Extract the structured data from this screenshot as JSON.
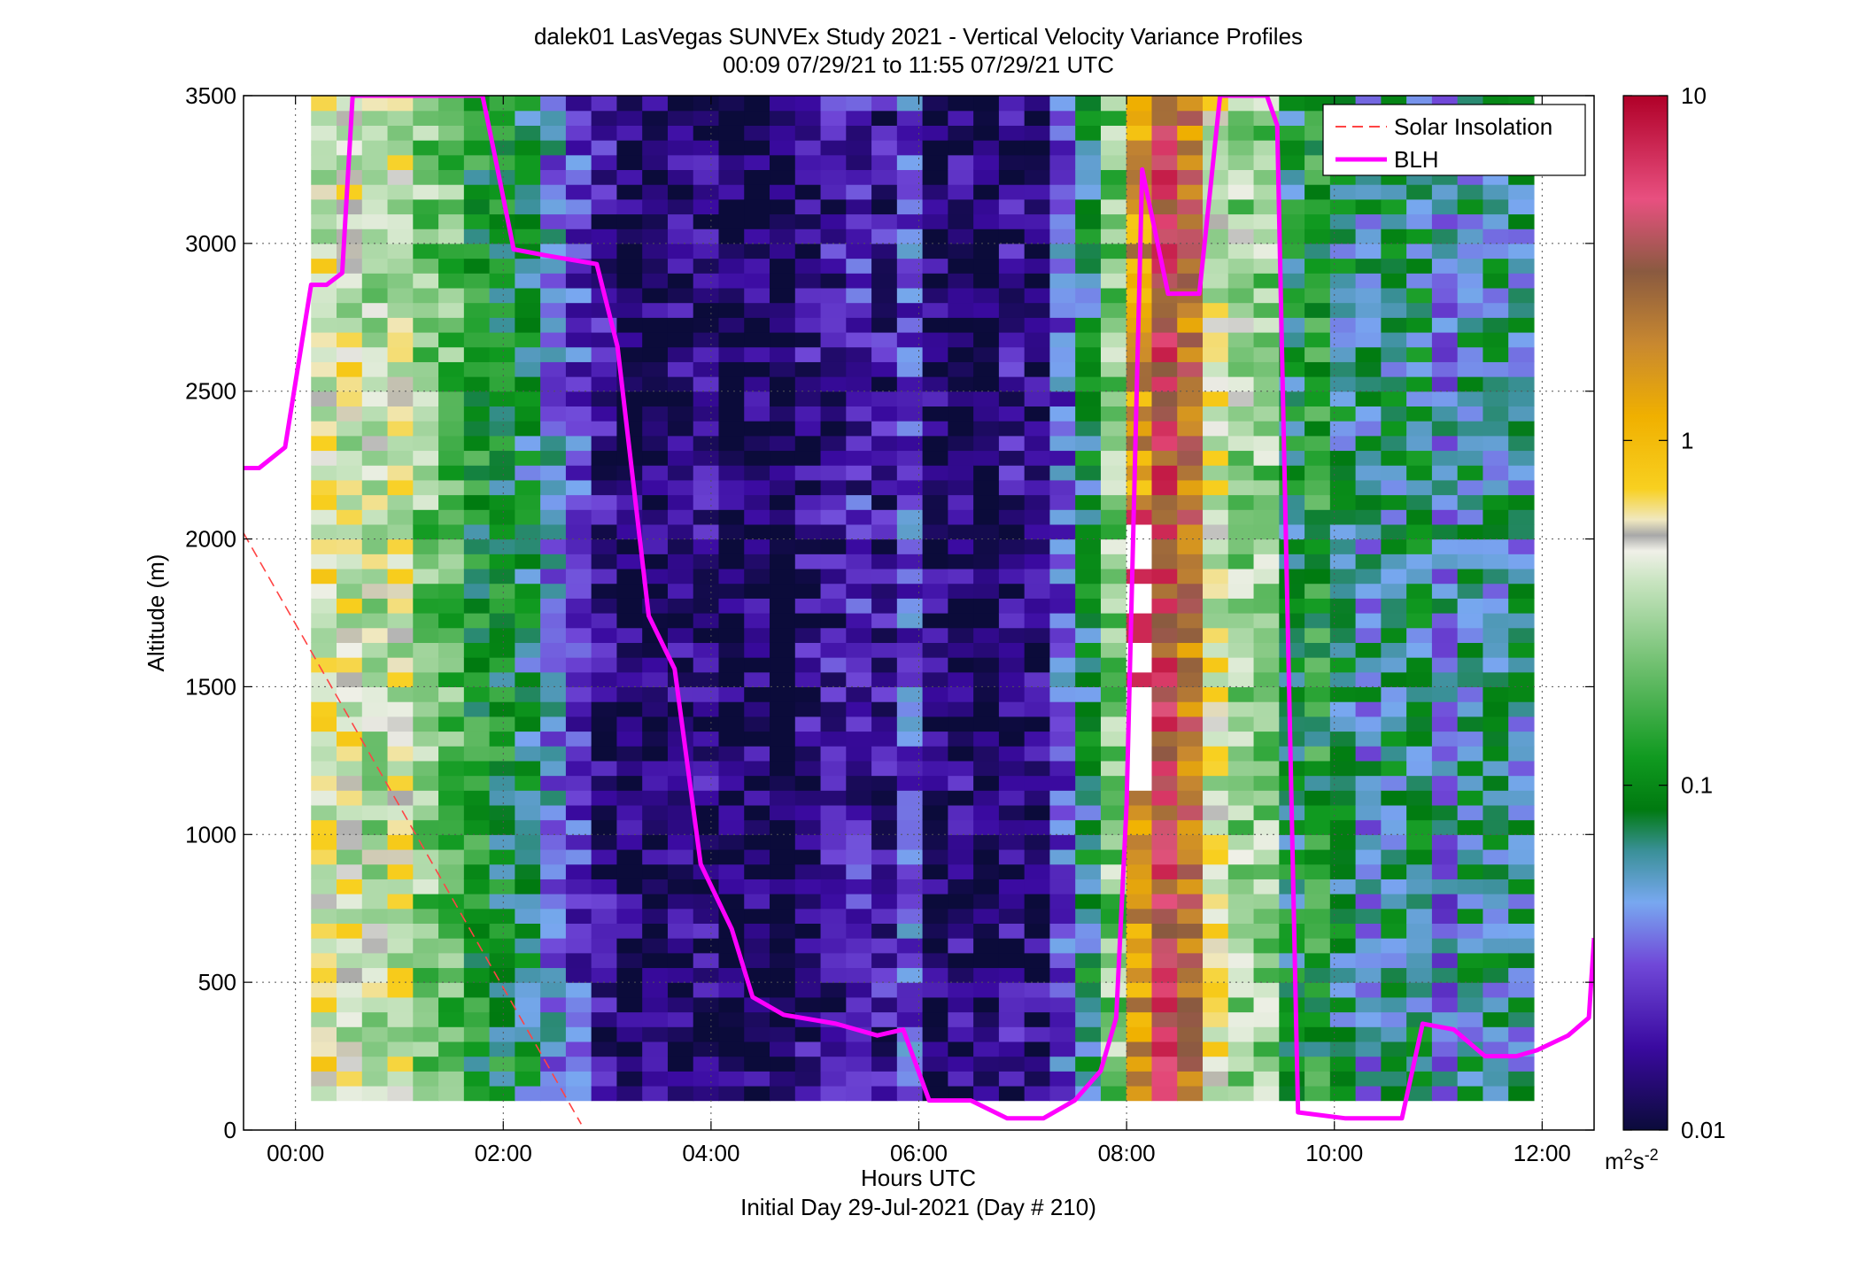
{
  "chart_data": {
    "type": "heatmap",
    "title": "dalek01 LasVegas SUNVEx Study 2021 - Vertical Velocity Variance Profiles",
    "subtitle": "00:09 07/29/21 to 11:55 07/29/21  UTC",
    "xlabel": "Hours UTC",
    "xlabel2": "Initial Day 29-Jul-2021 (Day # 210)",
    "ylabel": "Altitude (m)",
    "x_range_hours": [
      -0.5,
      12.5
    ],
    "ylim": [
      0,
      3500
    ],
    "x_ticks": [
      {
        "v": 0,
        "label": "00:00"
      },
      {
        "v": 2,
        "label": "02:00"
      },
      {
        "v": 4,
        "label": "04:00"
      },
      {
        "v": 6,
        "label": "06:00"
      },
      {
        "v": 8,
        "label": "08:00"
      },
      {
        "v": 10,
        "label": "10:00"
      },
      {
        "v": 12,
        "label": "12:00"
      }
    ],
    "y_ticks": [
      0,
      500,
      1000,
      1500,
      2000,
      2500,
      3000,
      3500
    ],
    "y_tick_labels": [
      "0",
      "500",
      "1000",
      "1500",
      "2000",
      "2500",
      "3000",
      "3500"
    ],
    "grid": true,
    "colorbar": {
      "scale": "log",
      "range": [
        0.01,
        10
      ],
      "ticks": [
        0.01,
        0.1,
        1,
        10
      ],
      "tick_labels": [
        "0.01",
        "0.1",
        "1",
        "10"
      ],
      "unit_base": "m",
      "unit_sup1": "2",
      "unit_mid": "s",
      "unit_sup2": "-2"
    },
    "legend": {
      "placement": "top-right",
      "entries": [
        {
          "label": "Solar Insolation",
          "color": "#ff4444",
          "style": "dashed"
        },
        {
          "label": "BLH",
          "color": "#ff00ff",
          "style": "solid"
        }
      ]
    },
    "heatmap_time_range_hours": [
      0.15,
      11.92
    ],
    "heatmap_altitude_range_m": [
      100,
      3500
    ],
    "heatmap_column_profile_log10": [
      [
        0,
        -0.4
      ],
      [
        0.6,
        -0.35
      ],
      [
        1.15,
        -0.55
      ],
      [
        1.45,
        -0.8
      ],
      [
        1.95,
        -1.05
      ],
      [
        2.3,
        -1.25
      ],
      [
        2.8,
        -1.75
      ],
      [
        3.4,
        -1.85
      ],
      [
        4.2,
        -1.95
      ],
      [
        5.2,
        -1.85
      ],
      [
        5.8,
        -1.6
      ],
      [
        6.3,
        -1.95
      ],
      [
        6.8,
        -1.95
      ],
      [
        7.2,
        -1.7
      ],
      [
        7.6,
        -1.1
      ],
      [
        8.1,
        0.05
      ],
      [
        8.5,
        0.75
      ],
      [
        8.75,
        -0.2
      ],
      [
        9.15,
        -0.5
      ],
      [
        9.7,
        -1.05
      ],
      [
        10.3,
        -1.15
      ],
      [
        11.0,
        -1.3
      ],
      [
        11.9,
        -1.35
      ]
    ],
    "series": [
      {
        "name": "BLH",
        "color": "#ff00ff",
        "x_hours": [
          -0.5,
          -0.35,
          -0.1,
          0.15,
          0.3,
          0.45,
          0.55,
          1.8,
          1.9,
          2.1,
          2.4,
          2.9,
          3.1,
          3.4,
          3.65,
          3.9,
          4.2,
          4.4,
          4.7,
          5.2,
          5.6,
          5.85,
          6.1,
          6.5,
          6.85,
          7.2,
          7.5,
          7.75,
          7.9,
          8.0,
          8.15,
          8.4,
          8.7,
          8.9,
          9.1,
          9.35,
          9.45,
          9.65,
          10.1,
          10.65,
          10.85,
          11.15,
          11.45,
          11.75,
          11.95,
          12.25,
          12.45,
          12.5
        ],
        "y_m": [
          2240,
          2240,
          2310,
          2860,
          2860,
          2900,
          3500,
          3500,
          3330,
          2980,
          2960,
          2930,
          2650,
          1740,
          1560,
          900,
          680,
          450,
          390,
          360,
          320,
          340,
          100,
          100,
          40,
          40,
          100,
          200,
          380,
          1100,
          3250,
          2830,
          2830,
          3500,
          3500,
          3500,
          3400,
          60,
          40,
          40,
          360,
          340,
          250,
          250,
          270,
          320,
          380,
          650
        ]
      },
      {
        "name": "Solar Insolation",
        "color": "#ff4444",
        "x_hours": [
          -0.5,
          2.75
        ],
        "y_m": [
          2020,
          20
        ]
      }
    ]
  }
}
